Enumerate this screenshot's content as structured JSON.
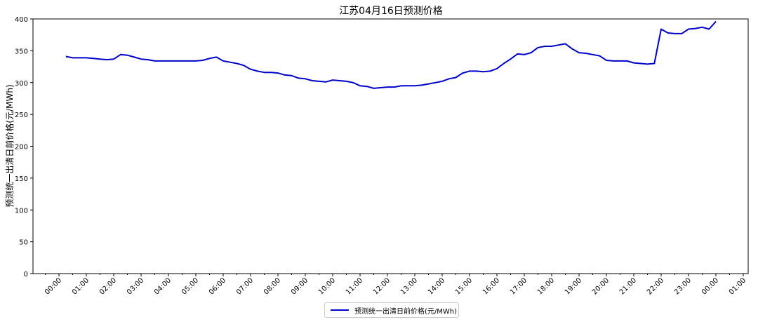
{
  "chart_data": {
    "type": "line",
    "title": "江苏04月16日预测价格",
    "xlabel": "",
    "ylabel": "预测统一出清日前价格(元/MWh)",
    "ylim": [
      0,
      400
    ],
    "yticks": [
      0,
      50,
      100,
      150,
      200,
      250,
      300,
      350,
      400
    ],
    "xticks": [
      "00:00",
      "01:00",
      "02:00",
      "03:00",
      "04:00",
      "05:00",
      "06:00",
      "07:00",
      "08:00",
      "09:00",
      "10:00",
      "11:00",
      "12:00",
      "13:00",
      "14:00",
      "15:00",
      "16:00",
      "17:00",
      "18:00",
      "19:00",
      "20:00",
      "21:00",
      "22:00",
      "23:00",
      "00:00",
      "01:00"
    ],
    "grid": false,
    "legend_position": "bottom-center",
    "line_color": "#0000cc",
    "x": [
      "00:15",
      "00:30",
      "00:45",
      "01:00",
      "01:15",
      "01:30",
      "01:45",
      "02:00",
      "02:15",
      "02:30",
      "02:45",
      "03:00",
      "03:15",
      "03:30",
      "03:45",
      "04:00",
      "04:15",
      "04:30",
      "04:45",
      "05:00",
      "05:15",
      "05:30",
      "05:45",
      "06:00",
      "06:15",
      "06:30",
      "06:45",
      "07:00",
      "07:15",
      "07:30",
      "07:45",
      "08:00",
      "08:15",
      "08:30",
      "08:45",
      "09:00",
      "09:15",
      "09:30",
      "09:45",
      "10:00",
      "10:15",
      "10:30",
      "10:45",
      "11:00",
      "11:15",
      "11:30",
      "11:45",
      "12:00",
      "12:15",
      "12:30",
      "12:45",
      "13:00",
      "13:15",
      "13:30",
      "13:45",
      "14:00",
      "14:15",
      "14:30",
      "14:45",
      "15:00",
      "15:15",
      "15:30",
      "15:45",
      "16:00",
      "16:15",
      "16:30",
      "16:45",
      "17:00",
      "17:15",
      "17:30",
      "17:45",
      "18:00",
      "18:15",
      "18:30",
      "18:45",
      "19:00",
      "19:15",
      "19:30",
      "19:45",
      "20:00",
      "20:15",
      "20:30",
      "20:45",
      "21:00",
      "21:15",
      "21:30",
      "21:45",
      "22:00",
      "22:15",
      "22:30",
      "22:45",
      "23:00",
      "23:15",
      "23:30",
      "23:45",
      "00:00"
    ],
    "series": [
      {
        "name": "预测统一出清日前价格(元/MWh)",
        "values": [
          341,
          339,
          339,
          339,
          338,
          337,
          336,
          337,
          344,
          343,
          340,
          337,
          336,
          334,
          334,
          334,
          334,
          334,
          334,
          334,
          335,
          338,
          340,
          334,
          332,
          330,
          327,
          321,
          318,
          316,
          316,
          315,
          312,
          311,
          307,
          306,
          303,
          302,
          301,
          304,
          303,
          302,
          300,
          295,
          294,
          291,
          292,
          293,
          293,
          295,
          295,
          295,
          296,
          298,
          300,
          302,
          306,
          308,
          315,
          318,
          318,
          317,
          318,
          322,
          330,
          337,
          345,
          344,
          347,
          355,
          357,
          357,
          359,
          361,
          353,
          347,
          346,
          344,
          342,
          335,
          334,
          334,
          334,
          331,
          330,
          329,
          330,
          384,
          378,
          377,
          377,
          384,
          385,
          387,
          384,
          396
        ]
      }
    ]
  },
  "legend": {
    "label": "预测统一出清日前价格(元/MWh)"
  }
}
